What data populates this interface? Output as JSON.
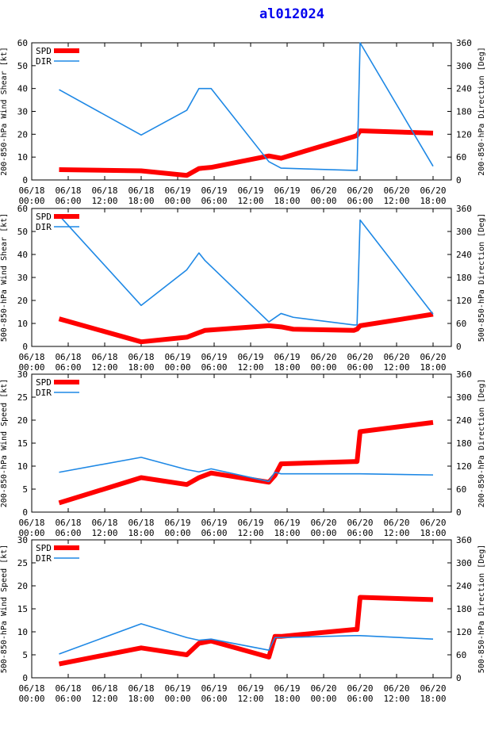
{
  "title": "al012024",
  "colors": {
    "spd": "#ff0000",
    "dir": "#1e88e5",
    "axis": "#000000"
  },
  "x_ticks": {
    "dates": [
      "06/18",
      "06/18",
      "06/18",
      "06/18",
      "06/19",
      "06/19",
      "06/19",
      "06/19",
      "06/20",
      "06/20",
      "06/20",
      "06/20"
    ],
    "times": [
      "00:00",
      "06:00",
      "12:00",
      "18:00",
      "00:00",
      "06:00",
      "12:00",
      "18:00",
      "00:00",
      "06:00",
      "12:00",
      "18:00"
    ],
    "hours": [
      0,
      6,
      12,
      18,
      24,
      30,
      36,
      42,
      48,
      54,
      60,
      66
    ]
  },
  "chart_data": [
    {
      "type": "line",
      "ylabel": "200-850-hPa Wind Shear [kt]",
      "y2label": "200-850-hPa Direction [Deg]",
      "ylim": [
        0,
        60
      ],
      "yticks": [
        "0",
        "10",
        "20",
        "30",
        "40",
        "50",
        "60"
      ],
      "y2lim": [
        0,
        360
      ],
      "y2ticks": [
        "0",
        "60",
        "120",
        "180",
        "240",
        "300",
        "360"
      ],
      "legend": [
        "SPD",
        "DIR"
      ],
      "series": [
        {
          "name": "SPD",
          "axis": "left",
          "x": [
            4.5,
            18,
            25.5,
            27.5,
            29.5,
            39,
            41,
            53,
            53.5,
            54,
            66
          ],
          "y": [
            4.5,
            4,
            2,
            5,
            5.5,
            10.5,
            9.5,
            19,
            19.5,
            21.5,
            20.5
          ]
        },
        {
          "name": "DIR",
          "axis": "right",
          "x": [
            4.5,
            18,
            25.5,
            27.5,
            29.5,
            39,
            41,
            53,
            53.5,
            54,
            66
          ],
          "y": [
            237,
            118,
            183,
            240,
            240,
            48,
            31,
            25,
            25,
            360,
            36
          ]
        }
      ]
    },
    {
      "type": "line",
      "ylabel": "500-850-hPa Wind Shear [kt]",
      "y2label": "500-850-hPa Direction [Deg]",
      "ylim": [
        0,
        60
      ],
      "yticks": [
        "0",
        "10",
        "20",
        "30",
        "40",
        "50",
        "60"
      ],
      "y2lim": [
        0,
        360
      ],
      "y2ticks": [
        "0",
        "60",
        "120",
        "180",
        "240",
        "300",
        "360"
      ],
      "legend": [
        "SPD",
        "DIR"
      ],
      "series": [
        {
          "name": "SPD",
          "axis": "left",
          "x": [
            4.5,
            18,
            25.5,
            27.5,
            28.5,
            39,
            41,
            43,
            53,
            53.5,
            54,
            66
          ],
          "y": [
            12,
            2,
            4,
            6,
            7,
            9,
            8.5,
            7.5,
            7,
            7.5,
            9,
            14
          ]
        },
        {
          "name": "DIR",
          "axis": "right",
          "x": [
            4.5,
            18,
            25.5,
            27.5,
            28.5,
            39,
            41,
            43,
            53,
            53.5,
            54,
            66
          ],
          "y": [
            342,
            107,
            200,
            244,
            224,
            64,
            86,
            76,
            56,
            56,
            330,
            84
          ]
        }
      ]
    },
    {
      "type": "line",
      "ylabel": "200-850-hPa Wind Speed [kt]",
      "y2label": "200-850-hPa Direction [Deg]",
      "ylim": [
        0,
        30
      ],
      "yticks": [
        "0",
        "5",
        "10",
        "15",
        "20",
        "25",
        "30"
      ],
      "y2lim": [
        0,
        360
      ],
      "y2ticks": [
        "0",
        "60",
        "120",
        "180",
        "240",
        "300",
        "360"
      ],
      "legend": [
        "SPD",
        "DIR"
      ],
      "series": [
        {
          "name": "SPD",
          "axis": "left",
          "x": [
            4.5,
            18,
            25.5,
            27.5,
            29.5,
            39,
            40,
            41,
            53,
            53.5,
            54,
            66
          ],
          "y": [
            2,
            7.5,
            6,
            7.5,
            8.5,
            6.5,
            8,
            10.5,
            11,
            11,
            17.5,
            19.5
          ]
        },
        {
          "name": "DIR",
          "axis": "right",
          "x": [
            4.5,
            18,
            25.5,
            27.5,
            29.5,
            39,
            40,
            41,
            53,
            53.5,
            54,
            66
          ],
          "y": [
            104,
            143,
            111,
            105,
            113,
            80,
            104,
            100,
            100,
            100,
            100,
            97
          ]
        }
      ]
    },
    {
      "type": "line",
      "ylabel": "500-850-hPa Wind Speed [kt]",
      "y2label": "500-850-hPa Direction [Deg]",
      "ylim": [
        0,
        30
      ],
      "yticks": [
        "0",
        "5",
        "10",
        "15",
        "20",
        "25",
        "30"
      ],
      "y2lim": [
        0,
        360
      ],
      "y2ticks": [
        "0",
        "60",
        "120",
        "180",
        "240",
        "300",
        "360"
      ],
      "legend": [
        "SPD",
        "DIR"
      ],
      "series": [
        {
          "name": "SPD",
          "axis": "left",
          "x": [
            4.5,
            18,
            25.5,
            27.5,
            29.5,
            39,
            40,
            41,
            53,
            53.5,
            54,
            66
          ],
          "y": [
            3,
            6.5,
            5,
            7.5,
            8,
            4.5,
            9,
            9,
            10.5,
            10.5,
            17.5,
            17
          ]
        },
        {
          "name": "DIR",
          "axis": "right",
          "x": [
            4.5,
            18,
            25.5,
            27.5,
            29.5,
            39,
            40,
            41,
            53,
            53.5,
            54,
            66
          ],
          "y": [
            62,
            141,
            105,
            98,
            101,
            72,
            105,
            105,
            110,
            110,
            110,
            101
          ]
        }
      ]
    }
  ]
}
